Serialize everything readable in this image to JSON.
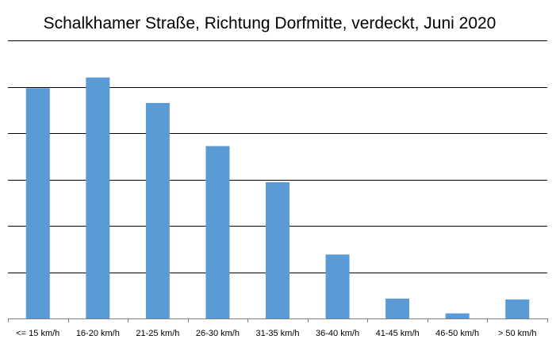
{
  "chart_data": {
    "type": "bar",
    "title": "Schalkhamer Straße, Richtung Dorfmitte, verdeckt, Juni 2020",
    "xlabel": "",
    "ylabel": "",
    "categories": [
      "<= 15 km/h",
      "16-20 km/h",
      "21-25 km/h",
      "26-30 km/h",
      "31-35 km/h",
      "36-40 km/h",
      "41-45 km/h",
      "46-50 km/h",
      "> 50 km/h"
    ],
    "values": [
      4.97,
      5.2,
      4.65,
      3.72,
      2.94,
      1.38,
      0.43,
      0.11,
      0.41
    ],
    "ylim": [
      0,
      6
    ],
    "y_ticks_labeled": false,
    "grid": true,
    "legend": "none",
    "bar_color": "#5b9bd5"
  }
}
